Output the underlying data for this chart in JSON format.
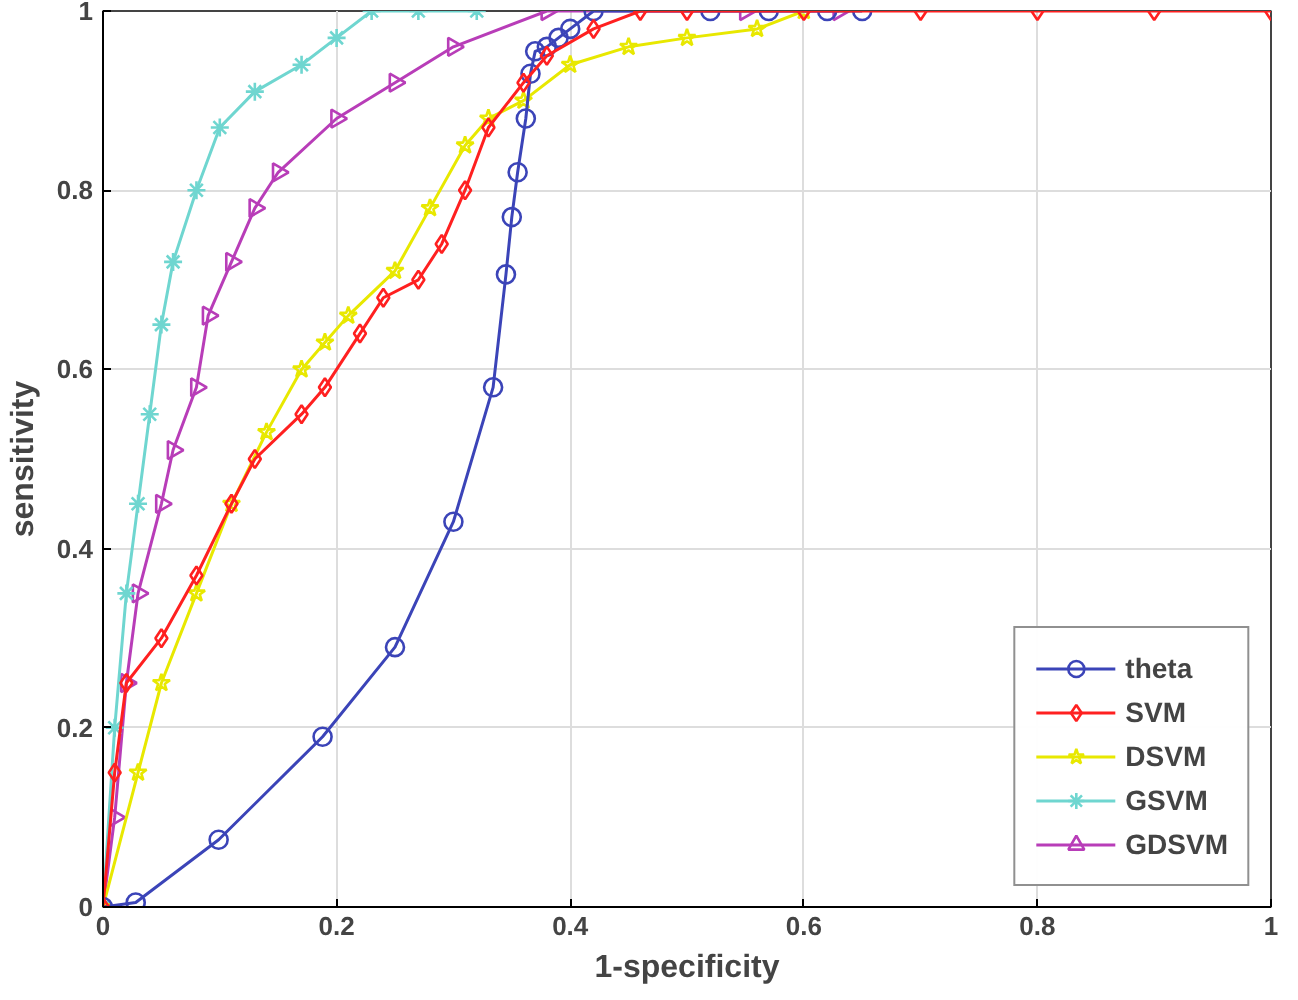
{
  "chart_data": {
    "type": "line",
    "xlabel": "1-specificity",
    "ylabel": "sensitivity",
    "xlim": [
      0,
      1
    ],
    "ylim": [
      0,
      1
    ],
    "xticks": [
      0,
      0.2,
      0.4,
      0.6,
      0.8,
      1
    ],
    "yticks": [
      0,
      0.2,
      0.4,
      0.6,
      0.8,
      1
    ],
    "grid": true,
    "legend": "bottom right",
    "line_style": "solid",
    "series": [
      {
        "name": "theta",
        "color": "#3b44b8",
        "marker": "circle",
        "x": [
          0,
          0.028,
          0.099,
          0.188,
          0.25,
          0.3,
          0.334,
          0.345,
          0.35,
          0.355,
          0.362,
          0.366,
          0.37,
          0.38,
          0.39,
          0.4,
          0.42,
          0.52,
          0.57,
          0.62,
          0.65
        ],
        "values": [
          0,
          0.005,
          0.075,
          0.19,
          0.29,
          0.43,
          0.58,
          0.706,
          0.77,
          0.82,
          0.88,
          0.93,
          0.955,
          0.96,
          0.97,
          0.98,
          1,
          1,
          1,
          1,
          1
        ]
      },
      {
        "name": "SVM",
        "color": "#ff2020",
        "marker": "diamond",
        "x": [
          0,
          0.01,
          0.02,
          0.05,
          0.08,
          0.11,
          0.13,
          0.17,
          0.19,
          0.22,
          0.24,
          0.27,
          0.29,
          0.31,
          0.33,
          0.36,
          0.38,
          0.42,
          0.46,
          0.5,
          0.6,
          0.7,
          0.8,
          0.9,
          1
        ],
        "values": [
          0,
          0.15,
          0.25,
          0.3,
          0.37,
          0.45,
          0.5,
          0.55,
          0.58,
          0.64,
          0.68,
          0.7,
          0.74,
          0.8,
          0.87,
          0.92,
          0.95,
          0.98,
          1,
          1,
          1,
          1,
          1,
          1,
          1
        ]
      },
      {
        "name": "DSVM",
        "color": "#e8e800",
        "marker": "star",
        "x": [
          0,
          0.03,
          0.05,
          0.08,
          0.11,
          0.14,
          0.17,
          0.19,
          0.21,
          0.25,
          0.28,
          0.31,
          0.33,
          0.36,
          0.4,
          0.45,
          0.5,
          0.56,
          0.6
        ],
        "values": [
          0,
          0.15,
          0.25,
          0.35,
          0.45,
          0.53,
          0.6,
          0.63,
          0.66,
          0.71,
          0.78,
          0.85,
          0.88,
          0.9,
          0.94,
          0.96,
          0.97,
          0.98,
          1
        ]
      },
      {
        "name": "GSVM",
        "color": "#6fd6d0",
        "marker": "cross",
        "x": [
          0,
          0.01,
          0.02,
          0.03,
          0.04,
          0.05,
          0.06,
          0.08,
          0.1,
          0.13,
          0.17,
          0.2,
          0.23,
          0.27,
          0.32
        ],
        "values": [
          0,
          0.2,
          0.35,
          0.45,
          0.55,
          0.65,
          0.72,
          0.8,
          0.87,
          0.91,
          0.94,
          0.97,
          1,
          1,
          1
        ]
      },
      {
        "name": "GDSVM",
        "color": "#b83db8",
        "marker": "triangle",
        "x": [
          0,
          0.01,
          0.02,
          0.03,
          0.05,
          0.06,
          0.08,
          0.09,
          0.11,
          0.13,
          0.15,
          0.2,
          0.25,
          0.3,
          0.38,
          0.55,
          0.63
        ],
        "values": [
          0,
          0.1,
          0.25,
          0.35,
          0.45,
          0.51,
          0.58,
          0.66,
          0.72,
          0.78,
          0.82,
          0.88,
          0.92,
          0.96,
          1,
          1,
          1
        ]
      }
    ]
  }
}
